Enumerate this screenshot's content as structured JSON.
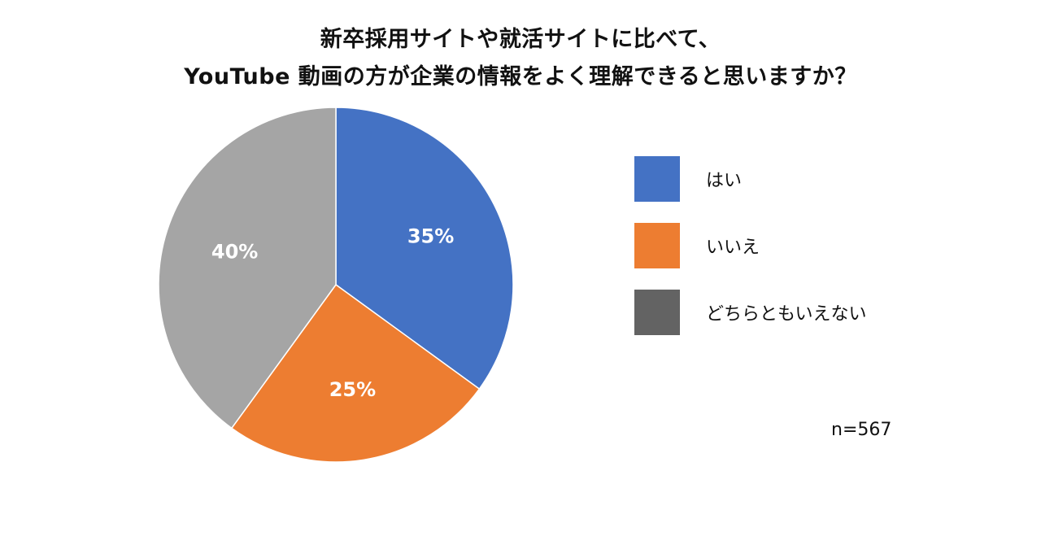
{
  "chart_data": {
    "type": "pie",
    "title_lines": [
      "新卒採用サイトや就活サイトに比べて、",
      "YouTube 動画の方が企業の情報をよく理解できると思いますか？"
    ],
    "categories": [
      "はい",
      "いいえ",
      "どちらともいえない"
    ],
    "values": [
      35,
      25,
      40
    ],
    "value_labels": [
      "35%",
      "25%",
      "40%"
    ],
    "colors": [
      "#4472C4",
      "#ED7D31",
      "#A5A5A5"
    ],
    "legend_colors": [
      "#4472C4",
      "#ED7D31",
      "#636363"
    ],
    "label_color": "#FFFFFF",
    "start": "12 o'clock",
    "direction": "clockwise",
    "legend_position": "right",
    "sample_size": "n=567"
  }
}
